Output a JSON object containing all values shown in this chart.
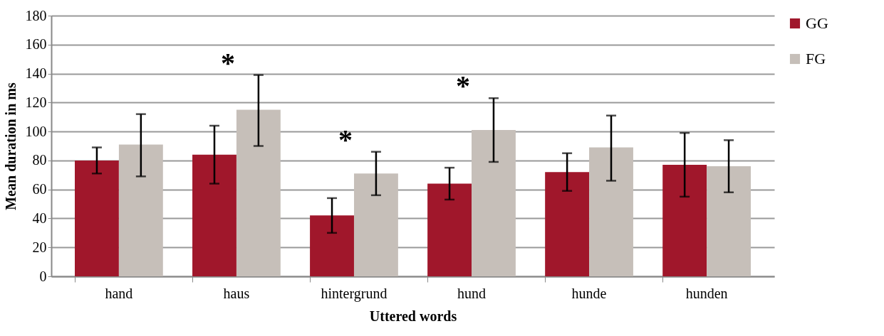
{
  "chart_data": {
    "type": "bar",
    "xlabel": "Uttered words",
    "ylabel": "Mean duration in ms",
    "categories": [
      "hand",
      "haus",
      "hintergrund",
      "hund",
      "hunde",
      "hunden"
    ],
    "series": [
      {
        "name": "GG",
        "color": "#a0172b",
        "values": [
          80,
          84,
          42,
          64,
          72,
          77
        ],
        "errors": [
          [
            71,
            89
          ],
          [
            64,
            104
          ],
          [
            30,
            54
          ],
          [
            53,
            75
          ],
          [
            59,
            85
          ],
          [
            55,
            99
          ]
        ]
      },
      {
        "name": "FG",
        "color": "#c6bfb9",
        "values": [
          91,
          115,
          71,
          101,
          89,
          76
        ],
        "errors": [
          [
            69,
            112
          ],
          [
            90,
            139
          ],
          [
            56,
            86
          ],
          [
            79,
            123
          ],
          [
            66,
            111
          ],
          [
            58,
            94
          ]
        ]
      }
    ],
    "ylim": [
      0,
      180
    ],
    "yticks": [
      0,
      20,
      40,
      60,
      80,
      100,
      120,
      140,
      160,
      180
    ],
    "grid": "y",
    "legend": "right",
    "annotations": [
      {
        "text": "*",
        "x": "haus",
        "y": 115
      },
      {
        "text": "*",
        "x": "hintergrund",
        "y": 71
      },
      {
        "text": "*",
        "x": "hund",
        "y": 101
      }
    ]
  }
}
